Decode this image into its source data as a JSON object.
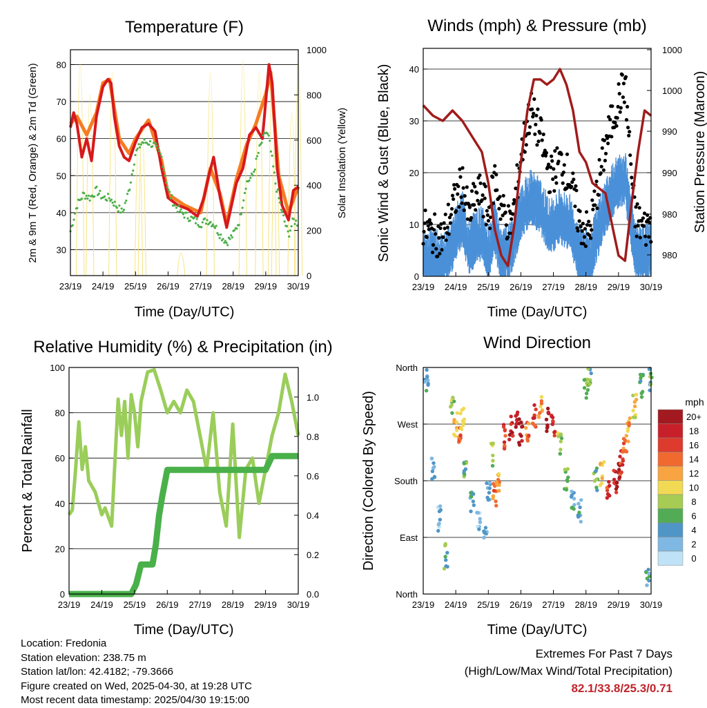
{
  "chart_data": [
    {
      "type": "line",
      "title": "Temperature (F)",
      "xlabel": "Time (Day/UTC)",
      "ylabel": "2m & 9m T (Red, Orange) & 2m Td (Green)",
      "y2label": "Solar Insolation (Yellow)",
      "x_ticks": [
        "23/19",
        "24/19",
        "25/19",
        "26/19",
        "27/19",
        "28/19",
        "29/19",
        "30/19"
      ],
      "ylim": [
        23,
        84
      ],
      "y_ticks": [
        30,
        40,
        50,
        60,
        70,
        80
      ],
      "y2lim": [
        0,
        1000
      ],
      "y2_ticks": [
        0,
        200,
        400,
        600,
        800,
        1000
      ],
      "grid": true,
      "series": [
        {
          "role": "2m T",
          "color": "#d7191c",
          "x": [
            0,
            0.1,
            0.2,
            0.35,
            0.5,
            0.65,
            0.8,
            1.0,
            1.15,
            1.25,
            1.35,
            1.5,
            1.65,
            1.8,
            2.0,
            2.2,
            2.4,
            2.6,
            2.8,
            3.0,
            3.3,
            3.6,
            3.9,
            4.1,
            4.25,
            4.4,
            4.6,
            4.8,
            4.95,
            5.1,
            5.3,
            5.5,
            5.7,
            5.9,
            6.0,
            6.1,
            6.2,
            6.35,
            6.5,
            6.7,
            6.85,
            7.0
          ],
          "values": [
            63,
            67,
            64,
            55,
            60,
            54,
            66,
            74,
            76,
            75,
            66,
            58,
            55,
            54,
            59,
            63,
            64,
            62,
            52,
            44,
            42,
            41,
            39,
            44,
            50,
            55,
            44,
            36,
            42,
            48,
            52,
            61,
            63,
            60,
            70,
            80,
            75,
            52,
            42,
            38,
            46,
            47
          ]
        },
        {
          "role": "9m T",
          "color": "#f57c23",
          "x": [
            0,
            0.2,
            0.5,
            0.8,
            1.0,
            1.2,
            1.5,
            1.8,
            2.0,
            2.4,
            2.8,
            3.0,
            3.5,
            4.0,
            4.3,
            4.6,
            4.8,
            5.1,
            5.4,
            5.7,
            6.0,
            6.15,
            6.4,
            6.7,
            7.0
          ],
          "values": [
            64,
            66,
            61,
            67,
            75,
            76,
            60,
            56,
            60,
            65,
            54,
            45,
            42,
            40,
            52,
            45,
            37,
            49,
            58,
            64,
            72,
            78,
            50,
            40,
            47
          ]
        },
        {
          "role": "2m Td",
          "color": "#4daf4a",
          "x": [
            0,
            0.2,
            0.4,
            0.6,
            0.8,
            1.0,
            1.2,
            1.4,
            1.6,
            1.8,
            2.0,
            2.2,
            2.4,
            2.6,
            2.8,
            3.0,
            3.2,
            3.4,
            3.6,
            3.8,
            4.0,
            4.2,
            4.4,
            4.6,
            4.8,
            5.0,
            5.2,
            5.4,
            5.6,
            5.8,
            6.0,
            6.1,
            6.3,
            6.5,
            6.7,
            6.85,
            7.0
          ],
          "values": [
            35,
            42,
            45,
            44,
            46,
            44,
            44,
            42,
            40,
            46,
            56,
            59,
            59,
            58,
            55,
            46,
            42,
            40,
            39,
            38,
            37,
            38,
            37,
            34,
            32,
            34,
            38,
            48,
            50,
            57,
            62,
            60,
            48,
            40,
            34,
            38,
            37
          ]
        },
        {
          "role": "Solar",
          "axis": "y2",
          "color": "#f7e37a",
          "peaks_x": [
            0.3,
            0.6,
            1.3,
            2.1,
            2.2,
            3.4,
            4.3,
            5.3,
            5.8,
            6.2,
            6.3,
            6.8,
            7.0
          ],
          "peaks": [
            940,
            800,
            900,
            620,
            650,
            100,
            900,
            950,
            900,
            900,
            700,
            720,
            950
          ]
        }
      ]
    },
    {
      "type": "scatter",
      "title": "Winds (mph) & Pressure (mb)",
      "xlabel": "Time (Day/UTC)",
      "ylabel": "Sonic Wind & Gust (Blue, Black)",
      "y2label": "Station Pressure (Maroon)",
      "x_ticks": [
        "23/19",
        "24/19",
        "25/19",
        "26/19",
        "27/19",
        "28/19",
        "29/19",
        "30/19"
      ],
      "ylim": [
        0,
        44
      ],
      "y_ticks": [
        0,
        10,
        20,
        30,
        40
      ],
      "y2_tick_labels": [
        "980",
        "980",
        "990",
        "990",
        "1000",
        "1000"
      ],
      "grid": true,
      "series": [
        {
          "role": "Wind",
          "color": "#4a90d9",
          "x": [
            0,
            0.3,
            0.6,
            0.9,
            1.2,
            1.4,
            1.6,
            1.8,
            2.0,
            2.2,
            2.4,
            2.7,
            3.0,
            3.3,
            3.6,
            3.9,
            4.2,
            4.5,
            4.8,
            5.1,
            5.3,
            5.6,
            5.9,
            6.2,
            6.5,
            6.8,
            7.0
          ],
          "values": [
            4,
            5,
            3,
            7,
            12,
            6,
            8,
            9,
            5,
            10,
            4,
            6,
            13,
            16,
            14,
            10,
            12,
            11,
            5,
            4,
            8,
            14,
            18,
            20,
            6,
            5,
            6
          ]
        },
        {
          "role": "Gust",
          "color": "#000000",
          "x": [
            0,
            0.3,
            0.6,
            0.9,
            1.2,
            1.4,
            1.6,
            1.8,
            2.0,
            2.2,
            2.4,
            2.7,
            3.0,
            3.3,
            3.6,
            3.9,
            4.2,
            4.5,
            4.8,
            5.1,
            5.3,
            5.6,
            5.9,
            6.2,
            6.5,
            6.8,
            7.0
          ],
          "values": [
            10,
            9,
            8,
            14,
            19,
            12,
            16,
            17,
            12,
            20,
            14,
            10,
            24,
            33,
            28,
            20,
            23,
            20,
            11,
            9,
            16,
            26,
            33,
            38,
            12,
            10,
            11
          ]
        },
        {
          "role": "Pressure",
          "color": "#a01c1c",
          "x": [
            0,
            0.3,
            0.6,
            0.9,
            1.2,
            1.5,
            1.8,
            2.0,
            2.2,
            2.4,
            2.6,
            2.8,
            3.0,
            3.2,
            3.4,
            3.6,
            3.8,
            4.0,
            4.2,
            4.4,
            4.6,
            4.8,
            5.0,
            5.2,
            5.4,
            5.6,
            5.8,
            6.0,
            6.2,
            6.4,
            6.6,
            6.8,
            7.0
          ],
          "values": [
            33,
            31,
            30,
            32,
            30,
            27,
            24,
            18,
            9,
            4,
            2,
            10,
            22,
            32,
            38,
            38,
            37,
            38,
            40,
            37,
            32,
            24,
            22,
            18,
            17,
            16,
            10,
            4,
            3,
            14,
            24,
            32,
            31
          ]
        }
      ]
    },
    {
      "type": "line",
      "title": "Relative Humidity (%) & Precipitation (in)",
      "xlabel": "Time (Day/UTC)",
      "ylabel": "Percent & Total Rainfall",
      "x_ticks": [
        "23/19",
        "24/19",
        "25/19",
        "26/19",
        "27/19",
        "28/19",
        "29/19",
        "30/19"
      ],
      "ylim": [
        0,
        100
      ],
      "y_ticks": [
        0,
        20,
        40,
        60,
        80,
        100
      ],
      "y2lim": [
        0,
        1.15
      ],
      "y2_ticks": [
        "0.0",
        "0.2",
        "0.4",
        "0.6",
        "0.8",
        "1.0"
      ],
      "grid": true,
      "series": [
        {
          "role": "RH",
          "color": "#9acd5a",
          "x": [
            0,
            0.1,
            0.2,
            0.3,
            0.4,
            0.5,
            0.6,
            0.8,
            1.0,
            1.1,
            1.3,
            1.5,
            1.6,
            1.7,
            1.8,
            1.9,
            2.0,
            2.1,
            2.2,
            2.4,
            2.6,
            2.8,
            3.0,
            3.2,
            3.4,
            3.6,
            3.8,
            4.0,
            4.2,
            4.4,
            4.6,
            4.8,
            5.0,
            5.2,
            5.4,
            5.6,
            5.8,
            6.0,
            6.2,
            6.4,
            6.6,
            6.8,
            7.0
          ],
          "values": [
            35,
            37,
            55,
            76,
            55,
            65,
            50,
            45,
            35,
            38,
            30,
            86,
            70,
            85,
            60,
            88,
            80,
            65,
            85,
            98,
            99,
            90,
            80,
            85,
            80,
            90,
            85,
            70,
            55,
            80,
            45,
            30,
            75,
            25,
            55,
            60,
            40,
            55,
            70,
            80,
            97,
            85,
            70
          ]
        },
        {
          "role": "Precip",
          "axis": "y2",
          "color": "#4ab04a",
          "x": [
            0,
            0.5,
            1.0,
            1.5,
            1.9,
            2.05,
            2.2,
            2.4,
            2.55,
            2.65,
            2.75,
            2.85,
            3.0,
            3.5,
            4.0,
            4.5,
            5.0,
            5.5,
            6.0,
            6.2,
            6.5,
            7.0
          ],
          "values": [
            0,
            0,
            0,
            0,
            0,
            0.05,
            0.15,
            0.15,
            0.15,
            0.25,
            0.4,
            0.5,
            0.63,
            0.63,
            0.63,
            0.63,
            0.63,
            0.63,
            0.63,
            0.7,
            0.7,
            0.7
          ]
        }
      ]
    },
    {
      "type": "scatter",
      "title": "Wind Direction",
      "xlabel": "Time (Day/UTC)",
      "ylabel": "Direction (Colored By Speed)",
      "x_ticks": [
        "23/19",
        "24/19",
        "25/19",
        "26/19",
        "27/19",
        "28/19",
        "29/19",
        "30/19"
      ],
      "y_tick_labels": [
        "North",
        "East",
        "South",
        "West",
        "North"
      ],
      "ylim": [
        0,
        360
      ],
      "grid": true,
      "legend": "right",
      "legend_title": "mph",
      "legend_labels": [
        "20+",
        "18",
        "16",
        "14",
        "12",
        "10",
        "8",
        "6",
        "4",
        "2",
        "0"
      ],
      "legend_colors": [
        "#a21a1f",
        "#c8202a",
        "#dd3b2d",
        "#f06a30",
        "#f8a541",
        "#f1d954",
        "#a6cc53",
        "#52ac55",
        "#4f96c7",
        "#7fb8e2",
        "#bfe2f6"
      ],
      "points_x": [
        0.1,
        0.3,
        0.5,
        0.7,
        0.9,
        1.0,
        1.1,
        1.2,
        1.3,
        1.5,
        1.7,
        1.9,
        2.0,
        2.1,
        2.2,
        2.3,
        2.5,
        2.7,
        2.9,
        3.0,
        3.2,
        3.4,
        3.6,
        3.8,
        4.0,
        4.2,
        4.4,
        4.6,
        4.8,
        5.0,
        5.1,
        5.3,
        5.5,
        5.7,
        5.9,
        6.0,
        6.1,
        6.2,
        6.3,
        6.5,
        6.7,
        6.9,
        7.0
      ],
      "points_dir": [
        340,
        200,
        120,
        60,
        300,
        270,
        250,
        280,
        200,
        150,
        120,
        90,
        160,
        220,
        160,
        180,
        250,
        265,
        280,
        255,
        260,
        285,
        300,
        275,
        270,
        240,
        180,
        150,
        130,
        330,
        350,
        180,
        190,
        160,
        180,
        190,
        210,
        240,
        260,
        300,
        330,
        20,
        340
      ],
      "points_speed": [
        4,
        3,
        2,
        6,
        8,
        12,
        14,
        10,
        6,
        4,
        2,
        3,
        4,
        8,
        14,
        12,
        16,
        18,
        18,
        20,
        14,
        16,
        12,
        20,
        18,
        8,
        6,
        4,
        4,
        8,
        6,
        6,
        10,
        16,
        18,
        20,
        16,
        14,
        12,
        10,
        6,
        4,
        6
      ]
    }
  ],
  "info": {
    "location": "Location: Fredonia",
    "elevation": "Station elevation: 238.75 m",
    "latlon": "Station lat/lon: 42.4182; -79.3666",
    "created": "Figure created on Wed, 2025-04-30, at 19:28 UTC",
    "recent": "Most recent data timestamp: 2025/04/30 19:15:00"
  },
  "extremes": {
    "title": "Extremes For Past 7 Days",
    "subtitle": "(High/Low/Max Wind/Total Precipitation)",
    "values": "82.1/33.8/25.3/0.71"
  }
}
